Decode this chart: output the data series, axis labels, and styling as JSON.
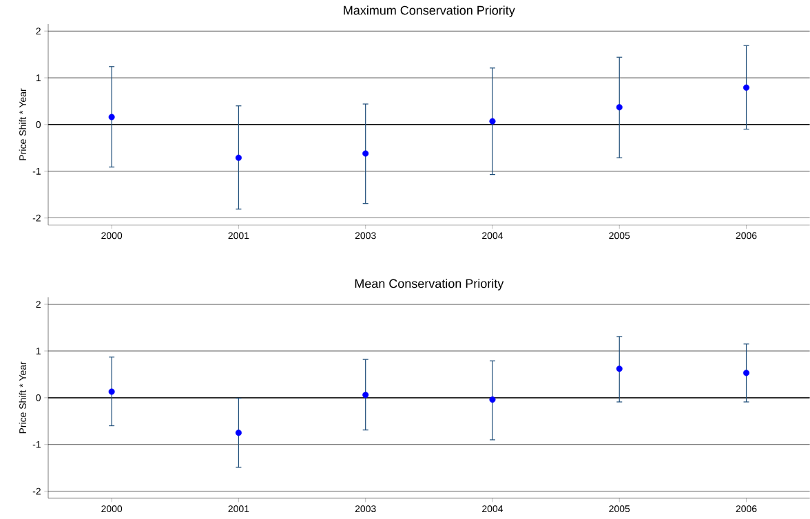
{
  "chart_data": [
    {
      "type": "scatter",
      "title": "Maximum Conservation Priority",
      "ylabel": "Price Shift * Year",
      "categories": [
        "2000",
        "2001",
        "2003",
        "2004",
        "2005",
        "2006"
      ],
      "color": "#0000ff",
      "grid": "y",
      "values": [
        0.16,
        -0.71,
        -0.62,
        0.07,
        0.37,
        0.79
      ],
      "errors": [
        [
          -0.91,
          1.24
        ],
        [
          -1.81,
          0.4
        ],
        [
          -1.69,
          0.44
        ],
        [
          -1.07,
          1.21
        ],
        [
          -0.71,
          1.44
        ],
        [
          -0.1,
          1.69
        ]
      ],
      "ylim": [
        -2.15,
        2.15
      ],
      "yticks": [
        -2,
        -1,
        0,
        1,
        2
      ],
      "ref_lines": [
        {
          "axis": "y",
          "value": 0
        }
      ]
    },
    {
      "type": "scatter",
      "title": "Mean Conservation Priority",
      "ylabel": "Price Shift * Year",
      "categories": [
        "2000",
        "2001",
        "2003",
        "2004",
        "2005",
        "2006"
      ],
      "color": "#0000ff",
      "grid": "y",
      "values": [
        0.13,
        -0.75,
        0.06,
        -0.04,
        0.62,
        0.53
      ],
      "errors": [
        [
          -0.6,
          0.87
        ],
        [
          -1.49,
          -0.01
        ],
        [
          -0.69,
          0.82
        ],
        [
          -0.9,
          0.79
        ],
        [
          -0.09,
          1.31
        ],
        [
          -0.09,
          1.15
        ]
      ],
      "ylim": [
        -2.15,
        2.15
      ],
      "yticks": [
        -2,
        -1,
        0,
        1,
        2
      ],
      "ref_lines": [
        {
          "axis": "y",
          "value": 0
        }
      ]
    }
  ]
}
